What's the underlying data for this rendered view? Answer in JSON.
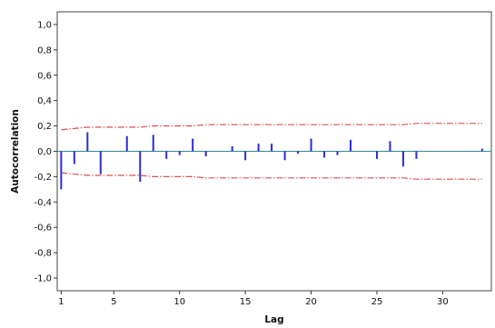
{
  "chart_data": {
    "type": "bar",
    "title": "",
    "xlabel": "Lag",
    "ylabel": "Autocorrelation",
    "xlim": [
      0.7,
      33.7
    ],
    "ylim": [
      -1.1,
      1.1
    ],
    "x_ticks": [
      1,
      5,
      10,
      15,
      20,
      25,
      30
    ],
    "x_tick_labels": [
      "1",
      "5",
      "10",
      "15",
      "20",
      "25",
      "30"
    ],
    "y_ticks": [
      1.0,
      0.8,
      0.6,
      0.4,
      0.2,
      0.0,
      -0.2,
      -0.4,
      -0.6,
      -0.8,
      -1.0
    ],
    "y_tick_labels": [
      "1,0",
      "0,8",
      "0,6",
      "0,4",
      "0,2",
      "0,0",
      "-0,2",
      "-0,4",
      "-0,6",
      "-0,8",
      "-1,0"
    ],
    "grid": false,
    "series": [
      {
        "lags": [
          1,
          2,
          3,
          4,
          5,
          6,
          7,
          8,
          9,
          10,
          11,
          12,
          13,
          14,
          15,
          16,
          17,
          18,
          19,
          20,
          21,
          22,
          23,
          24,
          25,
          26,
          27,
          28,
          29,
          30,
          31,
          32,
          33
        ],
        "values": [
          -0.3,
          -0.1,
          0.15,
          -0.18,
          0.0,
          0.12,
          -0.24,
          0.13,
          -0.06,
          -0.03,
          0.1,
          -0.04,
          0.0,
          0.04,
          -0.07,
          0.06,
          0.06,
          -0.07,
          -0.02,
          0.1,
          -0.05,
          -0.03,
          0.09,
          0.0,
          -0.06,
          0.08,
          -0.12,
          -0.06,
          0.0,
          0.0,
          0.0,
          0.0,
          0.02
        ]
      }
    ],
    "confidence_limits": {
      "lags": [
        1,
        2,
        3,
        4,
        5,
        6,
        7,
        8,
        9,
        10,
        11,
        12,
        13,
        14,
        15,
        16,
        17,
        18,
        19,
        20,
        21,
        22,
        23,
        24,
        25,
        26,
        27,
        28,
        29,
        30,
        31,
        32,
        33
      ],
      "upper": [
        0.17,
        0.18,
        0.19,
        0.19,
        0.19,
        0.19,
        0.19,
        0.2,
        0.2,
        0.2,
        0.2,
        0.21,
        0.21,
        0.21,
        0.21,
        0.21,
        0.21,
        0.21,
        0.21,
        0.21,
        0.21,
        0.21,
        0.21,
        0.21,
        0.21,
        0.21,
        0.21,
        0.22,
        0.22,
        0.22,
        0.22,
        0.22,
        0.22
      ],
      "lower": [
        -0.17,
        -0.18,
        -0.19,
        -0.19,
        -0.19,
        -0.19,
        -0.19,
        -0.2,
        -0.2,
        -0.2,
        -0.2,
        -0.21,
        -0.21,
        -0.21,
        -0.21,
        -0.21,
        -0.21,
        -0.21,
        -0.21,
        -0.21,
        -0.21,
        -0.21,
        -0.21,
        -0.21,
        -0.21,
        -0.21,
        -0.21,
        -0.22,
        -0.22,
        -0.22,
        -0.22,
        -0.22,
        -0.22
      ]
    },
    "colors": {
      "bars": "#2b2bd6",
      "confidence": "#d9534f",
      "zero_line": "#2e8b8b",
      "frame": "#444444"
    }
  }
}
